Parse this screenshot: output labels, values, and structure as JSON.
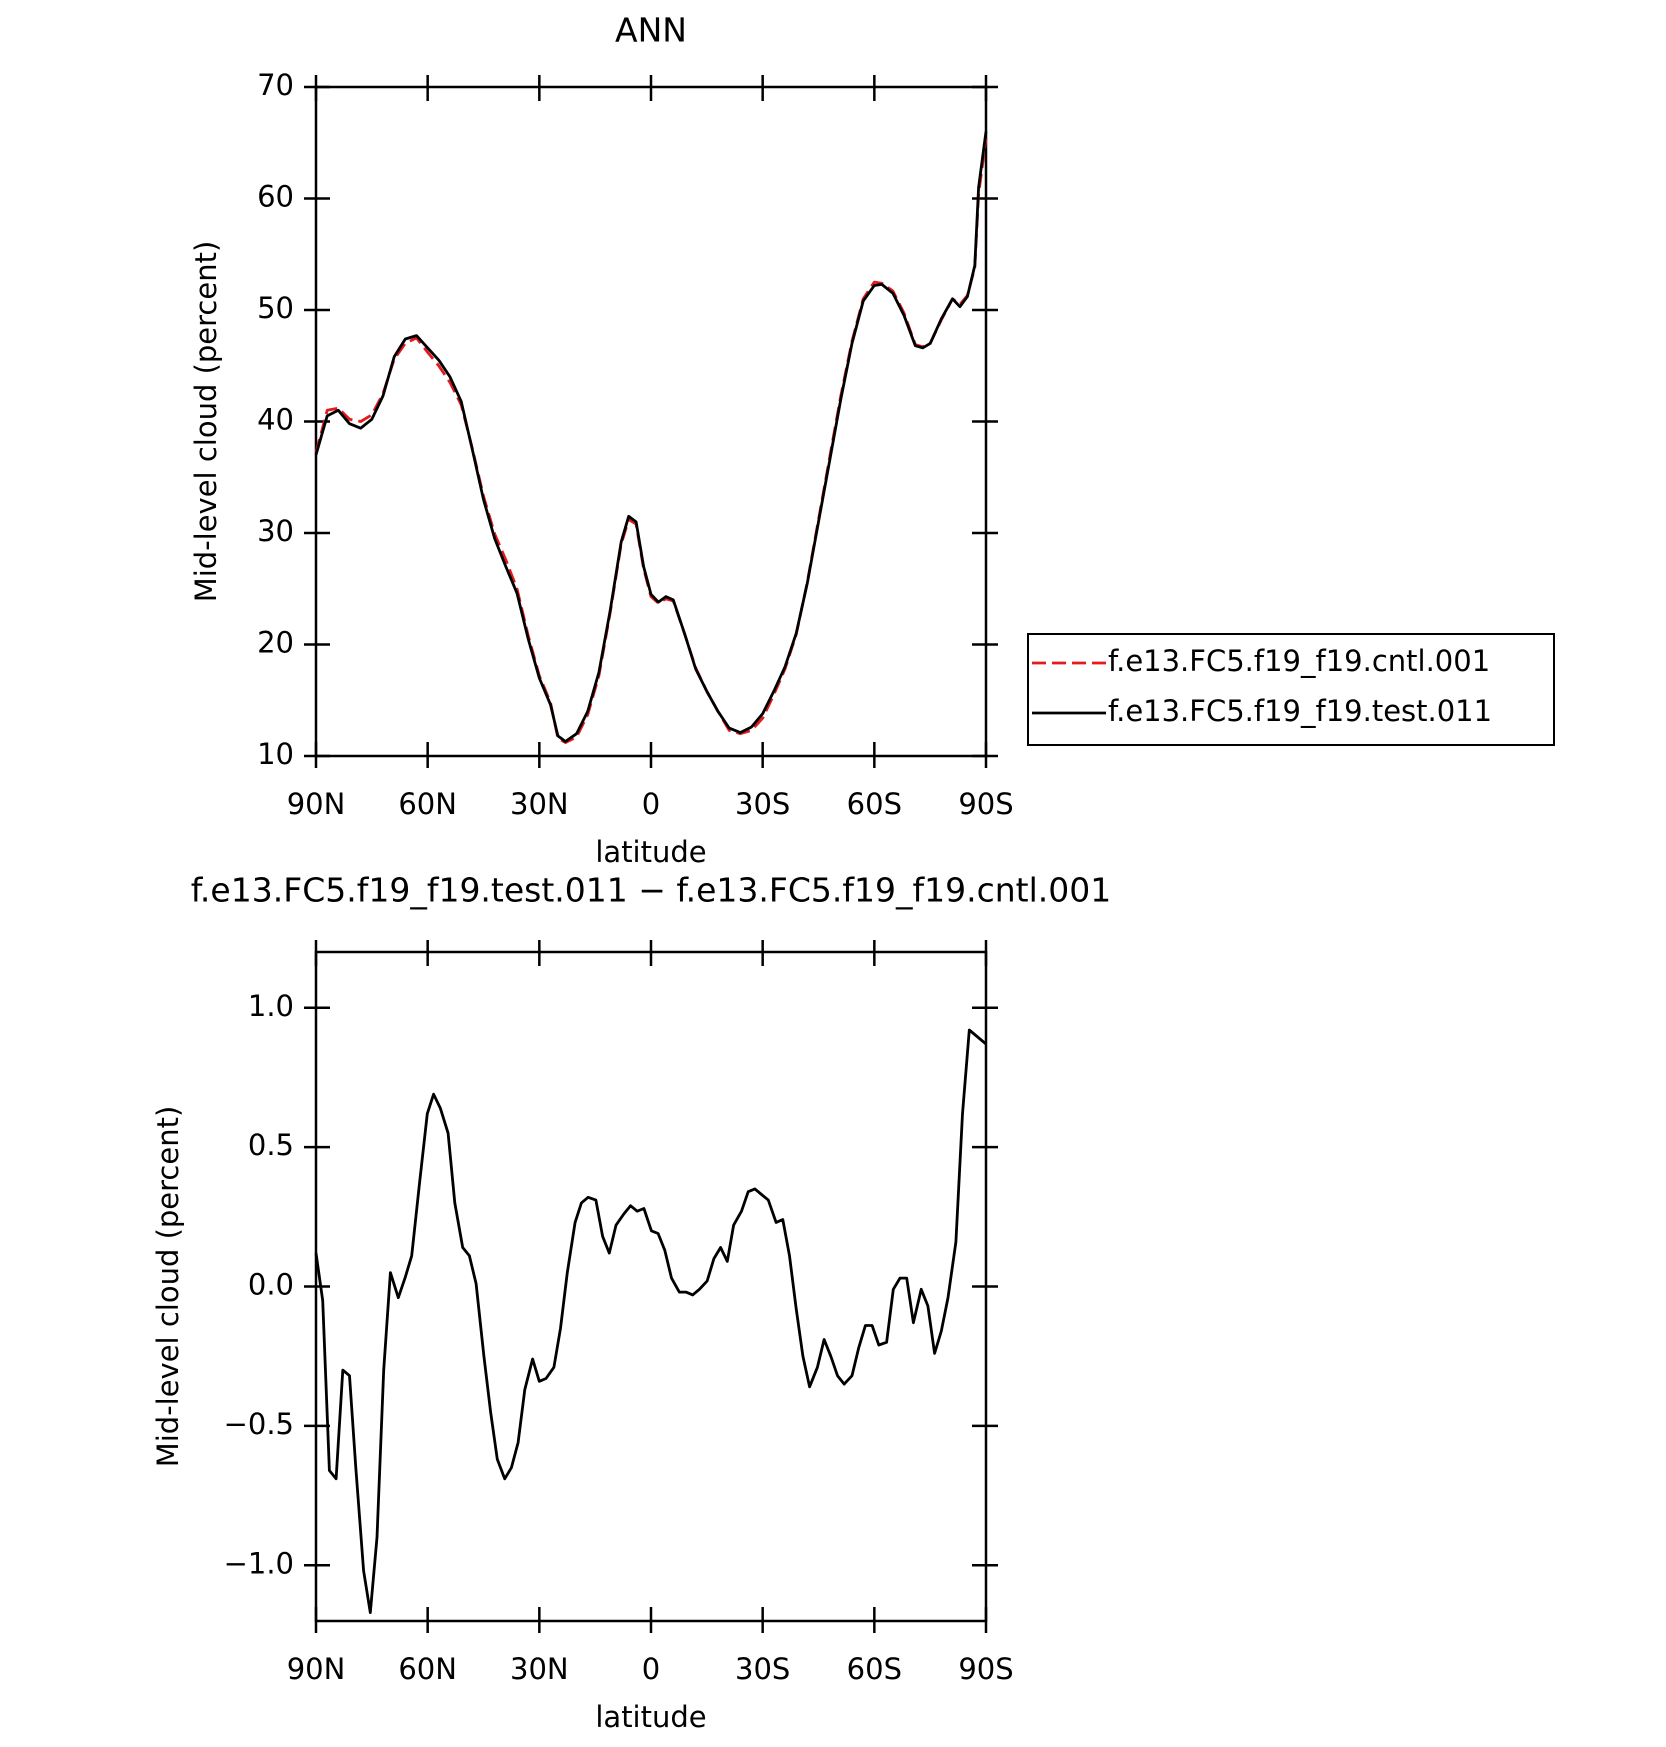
{
  "chart_data": [
    {
      "type": "line",
      "title": "ANN",
      "xlabel": "latitude",
      "ylabel": "Mid-level cloud (percent)",
      "x": [
        90,
        87,
        84,
        81,
        78,
        75,
        72,
        69,
        66,
        63,
        60,
        57,
        54,
        51,
        48,
        45,
        42,
        39,
        36,
        33,
        30,
        27,
        25,
        23,
        20,
        17,
        14,
        11,
        8,
        6,
        4,
        2,
        0,
        -2,
        -4,
        -6,
        -9,
        -12,
        -15,
        -18,
        -21,
        -24,
        -27,
        -30,
        -33,
        -36,
        -39,
        -42,
        -45,
        -48,
        -51,
        -54,
        -57,
        -60,
        -62,
        -65,
        -68,
        -71,
        -73,
        -75,
        -78,
        -81,
        -83,
        -85,
        -87,
        -88,
        -90
      ],
      "series": [
        {
          "name": "f.e13.FC5.f19_f19.cntl.001",
          "color": "#e41a1c",
          "linestyle": "dashed",
          "values": [
            37.2,
            41,
            41.2,
            40.2,
            40,
            40.6,
            42.5,
            45.6,
            47,
            47.5,
            46.2,
            45,
            43.5,
            41.5,
            37.6,
            33.3,
            29.9,
            27.6,
            25,
            20.8,
            17.2,
            14.8,
            11.6,
            11.2,
            11.7,
            13.7,
            17.2,
            22.8,
            29,
            31.2,
            30.8,
            26.8,
            24.3,
            23.7,
            24.1,
            23.9,
            21,
            17.9,
            15.8,
            14,
            12.3,
            12,
            12.3,
            13.4,
            15.5,
            17.8,
            20.9,
            25.6,
            31.2,
            36.8,
            42.3,
            47.2,
            51,
            52.5,
            52.4,
            51.7,
            49.7,
            46.9,
            46.7,
            47,
            49.1,
            51,
            50.5,
            51.3,
            53.8,
            60.4,
            65.4
          ]
        },
        {
          "name": "f.e13.FC5.f19_f19.test.011",
          "color": "#000000",
          "linestyle": "solid",
          "values": [
            37,
            40.5,
            41,
            39.8,
            39.4,
            40.2,
            42.3,
            45.8,
            47.4,
            47.7,
            46.6,
            45.5,
            44,
            41.8,
            37.5,
            33,
            29.5,
            27,
            24.6,
            20.5,
            17,
            14.6,
            11.8,
            11.3,
            12,
            14,
            17.5,
            23,
            29.2,
            31.5,
            31,
            27,
            24.5,
            23.8,
            24.3,
            24,
            21,
            17.8,
            15.8,
            14,
            12.5,
            12.1,
            12.6,
            13.8,
            15.8,
            18,
            21,
            25.5,
            31,
            36.5,
            42,
            47,
            50.8,
            52.2,
            52.3,
            51.5,
            49.5,
            46.8,
            46.6,
            47,
            49.2,
            51,
            50.3,
            51.2,
            54,
            61,
            66
          ]
        }
      ],
      "xlim": [
        90,
        -90
      ],
      "xticks": [
        {
          "value": 90,
          "label": "90N"
        },
        {
          "value": 60,
          "label": "60N"
        },
        {
          "value": 30,
          "label": "30N"
        },
        0,
        {
          "value": -30,
          "label": "30S"
        },
        {
          "value": -60,
          "label": "60S"
        },
        {
          "value": -90,
          "label": "90S"
        }
      ],
      "ylim": [
        10,
        70
      ],
      "yticks": [
        10,
        20,
        30,
        40,
        50,
        60,
        70
      ],
      "legend": "right"
    },
    {
      "type": "line",
      "title": "f.e13.FC5.f19_f19.test.011 − f.e13.FC5.f19_f19.cntl.001",
      "xlabel": "latitude",
      "ylabel": "Mid-level cloud (percent)",
      "x": [
        90,
        88.2,
        86.4,
        84.6,
        82.8,
        81,
        79.3,
        77.2,
        75.4,
        73.6,
        71.8,
        70,
        67.9,
        66.1,
        64.3,
        62.2,
        60.1,
        58.4,
        56.6,
        54.5,
        52.7,
        50.6,
        48.8,
        47,
        44.9,
        43.1,
        41.3,
        39.3,
        37.5,
        35.7,
        33.9,
        31.8,
        30,
        28.2,
        26.1,
        24.3,
        22.5,
        20.4,
        18.7,
        16.9,
        14.8,
        13,
        11.2,
        9.4,
        7.3,
        5.5,
        3.7,
        1.9,
        -0.1,
        -1.9,
        -3.7,
        -5.5,
        -7.6,
        -9.4,
        -11.2,
        -13,
        -15.1,
        -16.9,
        -18.7,
        -20.5,
        -22.2,
        -24.3,
        -26.1,
        -27.9,
        -29.7,
        -31.5,
        -33.6,
        -35.4,
        -37.2,
        -39,
        -40.8,
        -42.6,
        -44.7,
        -46.5,
        -48.3,
        -50.1,
        -51.9,
        -54,
        -55.8,
        -57.6,
        -59.4,
        -61.2,
        -63.3,
        -65.1,
        -66.9,
        -68.7,
        -70.5,
        -72.6,
        -74.4,
        -76.2,
        -78,
        -79.8,
        -81.9,
        -83.7,
        -85.5,
        -90
      ],
      "series": [
        {
          "color": "#000000",
          "linestyle": "solid",
          "values": [
            0.12,
            -0.05,
            -0.66,
            -0.69,
            -0.3,
            -0.32,
            -0.65,
            -1.02,
            -1.17,
            -0.9,
            -0.3,
            0.05,
            -0.04,
            0.03,
            0.11,
            0.37,
            0.62,
            0.69,
            0.64,
            0.55,
            0.3,
            0.14,
            0.11,
            0.01,
            -0.25,
            -0.45,
            -0.62,
            -0.69,
            -0.65,
            -0.56,
            -0.37,
            -0.26,
            -0.34,
            -0.33,
            -0.29,
            -0.15,
            0.05,
            0.23,
            0.3,
            0.32,
            0.31,
            0.18,
            0.12,
            0.22,
            0.26,
            0.29,
            0.27,
            0.28,
            0.2,
            0.19,
            0.13,
            0.03,
            -0.02,
            -0.02,
            -0.03,
            -0.01,
            0.02,
            0.1,
            0.14,
            0.09,
            0.22,
            0.27,
            0.34,
            0.35,
            0.33,
            0.31,
            0.23,
            0.24,
            0.11,
            -0.08,
            -0.25,
            -0.36,
            -0.29,
            -0.19,
            -0.25,
            -0.32,
            -0.35,
            -0.32,
            -0.22,
            -0.14,
            -0.14,
            -0.21,
            -0.2,
            -0.01,
            0.03,
            0.03,
            -0.13,
            -0.01,
            -0.07,
            -0.24,
            -0.16,
            -0.04,
            0.16,
            0.62,
            0.92,
            0.87
          ]
        }
      ],
      "xlim": [
        90,
        -90
      ],
      "xticks": [
        {
          "value": 90,
          "label": "90N"
        },
        {
          "value": 60,
          "label": "60N"
        },
        {
          "value": 30,
          "label": "30N"
        },
        0,
        {
          "value": -30,
          "label": "30S"
        },
        {
          "value": -60,
          "label": "60S"
        },
        {
          "value": -90,
          "label": "90S"
        }
      ],
      "ylim": [
        -1.2,
        1.2
      ],
      "yticks": [
        {
          "value": -1,
          "label": "−1.0"
        },
        {
          "value": -0.5,
          "label": "−0.5"
        },
        {
          "value": 0,
          "label": "0.0"
        },
        0.5,
        {
          "value": 1,
          "label": "1.0"
        }
      ]
    }
  ]
}
